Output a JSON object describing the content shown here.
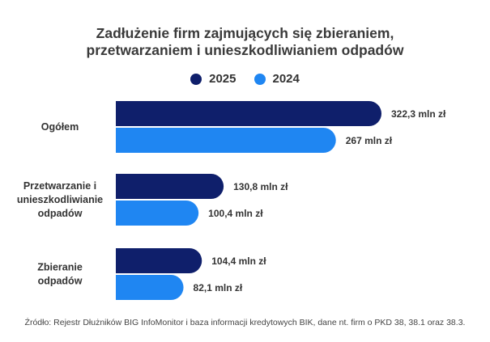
{
  "chart_data": {
    "type": "bar",
    "orientation": "horizontal",
    "title": "Zadłużenie firm zajmujących się zbieraniem,\nprzetwarzaniem i unieszkodliwianiem odpadów",
    "title_lines": [
      "Zadłużenie firm zajmujących się zbieraniem,",
      "przetwarzaniem i unieszkodliwianiem odpadów"
    ],
    "categories": [
      [
        "Ogółem"
      ],
      [
        "Przetwarzanie i",
        "unieszkodliwianie",
        "odpadów"
      ],
      [
        "Zbieranie",
        "odpadów"
      ]
    ],
    "series": [
      {
        "name": "2025",
        "color": "#0f1f6b",
        "values": [
          322.3,
          130.8,
          104.4
        ],
        "labels": [
          "322,3  mln zł",
          "130,8 mln zł",
          "104,4  mln zł"
        ]
      },
      {
        "name": "2024",
        "color": "#1f86f2",
        "values": [
          267,
          100.4,
          82.1
        ],
        "labels": [
          "267 mln zł",
          "100,4  mln zł",
          "82,1  mln zł"
        ]
      }
    ],
    "xlim": [
      0,
      322.3
    ],
    "legend": "top-center",
    "grid": false
  },
  "source": "Źródło: Rejestr Dłużników BIG InfoMonitor i baza informacji kredytowych BIK, dane nt. firm o PKD 38, 38.1 oraz 38.3."
}
